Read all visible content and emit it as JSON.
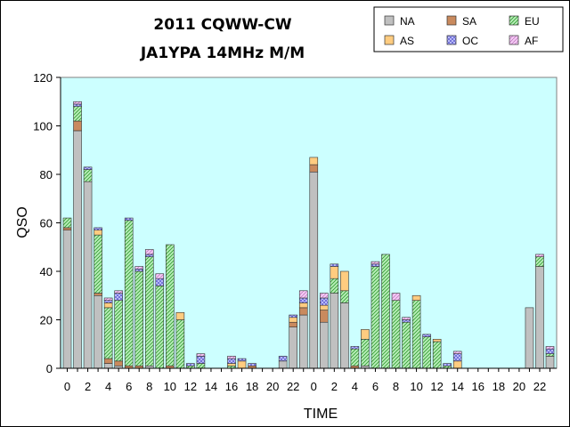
{
  "chart_data": {
    "type": "bar",
    "stacked": true,
    "title": "2011 CQWW-CW",
    "subtitle": "JA1YPA  14MHz  M/M",
    "xlabel": "TIME",
    "ylabel": "QSO",
    "ylim": [
      0,
      120
    ],
    "yticks": [
      0,
      20,
      40,
      60,
      80,
      100,
      120
    ],
    "grid": false,
    "legend_placement": "top-right",
    "categories": [
      "0",
      "1",
      "2",
      "3",
      "4",
      "5",
      "6",
      "7",
      "8",
      "9",
      "10",
      "11",
      "12",
      "13",
      "14",
      "15",
      "16",
      "17",
      "18",
      "19",
      "20",
      "21",
      "22",
      "23",
      "0",
      "1",
      "2",
      "3",
      "4",
      "5",
      "6",
      "7",
      "8",
      "9",
      "10",
      "11",
      "12",
      "13",
      "14",
      "15",
      "16",
      "17",
      "18",
      "19",
      "20",
      "21",
      "22",
      "23"
    ],
    "tick_labels": [
      "0",
      "2",
      "4",
      "6",
      "8",
      "10",
      "12",
      "14",
      "16",
      "18",
      "20",
      "22",
      "0",
      "2",
      "4",
      "6",
      "8",
      "10",
      "12",
      "14",
      "16",
      "18",
      "20",
      "22"
    ],
    "series": [
      {
        "name": "NA",
        "values": [
          57,
          98,
          77,
          30,
          2,
          1,
          0,
          0,
          1,
          0,
          0,
          0,
          0,
          0,
          0,
          0,
          0,
          0,
          0,
          0,
          0,
          3,
          17,
          22,
          81,
          19,
          31,
          27,
          0,
          1,
          0,
          0,
          0,
          0,
          0,
          0,
          0,
          0,
          0,
          0,
          0,
          0,
          0,
          0,
          0,
          25,
          42,
          5
        ]
      },
      {
        "name": "SA",
        "values": [
          1,
          4,
          0,
          1,
          2,
          2,
          1,
          1,
          0,
          0,
          1,
          0,
          0,
          0,
          0,
          0,
          0,
          0,
          1,
          0,
          0,
          0,
          2,
          3,
          3,
          5,
          0,
          0,
          1,
          0,
          0,
          0,
          0,
          0,
          0,
          0,
          0,
          0,
          0,
          0,
          0,
          0,
          0,
          0,
          0,
          0,
          0,
          0
        ]
      },
      {
        "name": "EU",
        "values": [
          4,
          6,
          5,
          24,
          21,
          25,
          60,
          39,
          45,
          34,
          50,
          20,
          1,
          2,
          0,
          0,
          1,
          0,
          0,
          0,
          0,
          0,
          0,
          0,
          0,
          0,
          6,
          5,
          7,
          11,
          42,
          47,
          28,
          19,
          28,
          13,
          11,
          1,
          0,
          0,
          0,
          0,
          0,
          0,
          0,
          0,
          4,
          1
        ]
      },
      {
        "name": "AS",
        "values": [
          0,
          0,
          0,
          2,
          2,
          0,
          0,
          0,
          0,
          0,
          0,
          3,
          0,
          0,
          0,
          0,
          1,
          3,
          0,
          0,
          0,
          0,
          2,
          2,
          3,
          2,
          5,
          8,
          0,
          4,
          0,
          0,
          0,
          0,
          2,
          0,
          1,
          0,
          3,
          0,
          0,
          0,
          0,
          0,
          0,
          0,
          0,
          0
        ]
      },
      {
        "name": "OC",
        "values": [
          0,
          1,
          1,
          1,
          1,
          3,
          1,
          1,
          1,
          3,
          0,
          0,
          1,
          3,
          0,
          0,
          2,
          1,
          1,
          0,
          0,
          2,
          1,
          2,
          0,
          3,
          1,
          0,
          1,
          0,
          1,
          0,
          0,
          1,
          0,
          1,
          0,
          1,
          3,
          0,
          0,
          0,
          0,
          0,
          0,
          0,
          0,
          2
        ]
      },
      {
        "name": "AF",
        "values": [
          0,
          1,
          0,
          0,
          1,
          1,
          0,
          1,
          2,
          2,
          0,
          0,
          0,
          1,
          0,
          0,
          1,
          0,
          0,
          0,
          0,
          0,
          0,
          3,
          0,
          2,
          0,
          0,
          0,
          0,
          1,
          0,
          3,
          1,
          0,
          0,
          0,
          0,
          1,
          0,
          0,
          0,
          0,
          0,
          0,
          0,
          1,
          1
        ]
      }
    ]
  },
  "colors": {
    "NA": "#c0c0c0",
    "SA": "#c98a5e",
    "EU": "#8fd98f",
    "AS": "#ffcc80",
    "OC": "#9999f0",
    "AF": "#e6a0e6",
    "plot_background": "#ccffff"
  }
}
